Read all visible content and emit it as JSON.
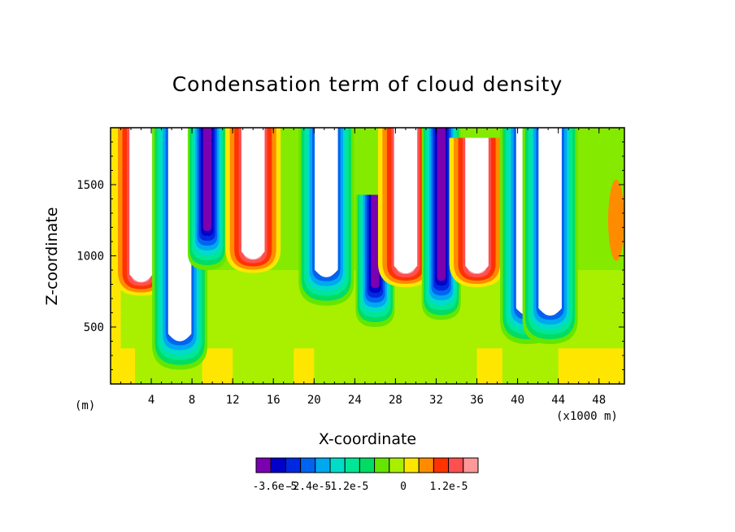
{
  "chart_data": {
    "type": "heatmap",
    "title": "Condensation term of cloud density",
    "xlabel": "X-coordinate",
    "ylabel": "Z-coordinate",
    "x_unit_left": "(m)",
    "x_unit_right": "(x1000 m)",
    "x_ticks": [
      "4",
      "8",
      "12",
      "16",
      "20",
      "24",
      "28",
      "32",
      "36",
      "40",
      "44",
      "48"
    ],
    "x_tick_values": [
      4,
      8,
      12,
      16,
      20,
      24,
      28,
      32,
      36,
      40,
      44,
      48
    ],
    "y_ticks": [
      "500",
      "1000",
      "1500"
    ],
    "y_tick_values": [
      500,
      1000,
      1500
    ],
    "xlim": [
      0,
      50.5
    ],
    "ylim": [
      100,
      1900
    ],
    "background_value_color": "#a8f000",
    "colorbar": {
      "colors": [
        "#7a00b0",
        "#0000c8",
        "#0028e0",
        "#0064f0",
        "#00a8f0",
        "#00dcc8",
        "#00e696",
        "#00dc64",
        "#64e600",
        "#a8f000",
        "#ffe600",
        "#ff8c00",
        "#ff3200",
        "#ff5050",
        "#ff9898"
      ],
      "labels": [
        "-3.6e-5",
        "-2.4e-5",
        "-1.2e-5",
        "0",
        "1.2e-5"
      ]
    },
    "features": [
      {
        "x": 3.0,
        "z_top": 1900,
        "z_bottom": 720,
        "kind": "positive",
        "white_core": true
      },
      {
        "x": 6.8,
        "z_top": 1900,
        "z_bottom": 200,
        "kind": "negative",
        "white_core": true
      },
      {
        "x": 9.5,
        "z_top": 1900,
        "z_bottom": 900,
        "kind": "negative",
        "white_core": false
      },
      {
        "x": 14.0,
        "z_top": 1900,
        "z_bottom": 880,
        "kind": "positive",
        "white_core": true
      },
      {
        "x": 21.2,
        "z_top": 1900,
        "z_bottom": 650,
        "kind": "negative",
        "white_core": true
      },
      {
        "x": 26.0,
        "z_top": 1400,
        "z_bottom": 500,
        "kind": "negative",
        "white_core": false
      },
      {
        "x": 29.0,
        "z_top": 1900,
        "z_bottom": 780,
        "kind": "positive",
        "white_core": true
      },
      {
        "x": 32.5,
        "z_top": 1900,
        "z_bottom": 550,
        "kind": "negative",
        "white_core": false
      },
      {
        "x": 36.0,
        "z_top": 1800,
        "z_bottom": 780,
        "kind": "positive",
        "white_core": true
      },
      {
        "x": 41.0,
        "z_top": 1900,
        "z_bottom": 380,
        "kind": "negative",
        "white_core": true
      },
      {
        "x": 43.2,
        "z_top": 1900,
        "z_bottom": 380,
        "kind": "negative",
        "white_core": true
      }
    ]
  }
}
